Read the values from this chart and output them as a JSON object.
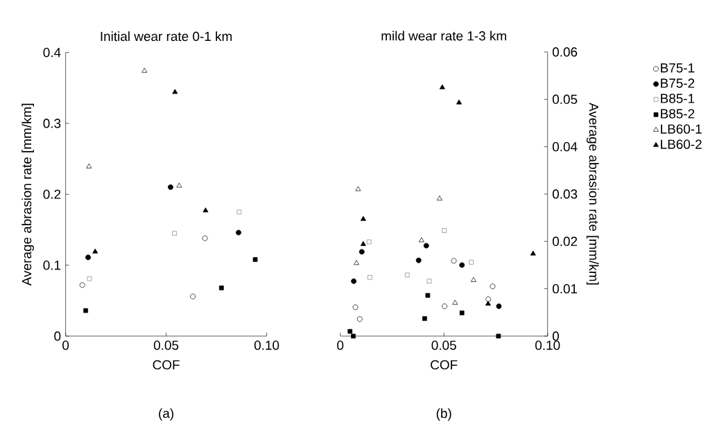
{
  "chart_data": [
    {
      "type": "scatter",
      "title": "Initial wear rate 0-1 km",
      "xlabel": "COF",
      "ylabel": "Average abrasion rate [mm/km]",
      "xlim": [
        0,
        0.1
      ],
      "ylim": [
        0,
        0.4
      ],
      "xticks": [
        0,
        0.05,
        {
          "value": 0.1,
          "label": "0.10"
        }
      ],
      "yticks": [
        0,
        0.1,
        0.2,
        0.3,
        0.4
      ],
      "annotations": [
        "(a)"
      ],
      "series": [
        {
          "color": "#000000",
          "marker": "circle-open",
          "x": [
            0.0083,
            0.0633,
            0.0693
          ],
          "values": [
            0.072,
            0.056,
            0.138
          ]
        },
        {
          "color": "#000000",
          "marker": "circle",
          "x": [
            0.0112,
            0.0522,
            0.086
          ],
          "values": [
            0.111,
            0.21,
            0.146
          ]
        },
        {
          "color": "#808080",
          "marker": "square-open",
          "x": [
            0.0119,
            0.0541,
            0.0863
          ],
          "values": [
            0.081,
            0.145,
            0.175
          ]
        },
        {
          "color": "#000000",
          "marker": "square",
          "x": [
            0.01,
            0.0775,
            0.0943
          ],
          "values": [
            0.036,
            0.068,
            0.108
          ]
        },
        {
          "color": "#000000",
          "marker": "triangle-open",
          "x": [
            0.0116,
            0.0392,
            0.0565
          ],
          "values": [
            0.239,
            0.374,
            0.212
          ]
        },
        {
          "color": "#000000",
          "marker": "triangle",
          "x": [
            0.0147,
            0.0544,
            0.0696
          ],
          "values": [
            0.119,
            0.344,
            0.177
          ]
        }
      ]
    },
    {
      "type": "scatter",
      "title": "mild wear rate 1-3 km",
      "xlabel": "COF",
      "y2label": "Average abrasion rate [mm/km]",
      "xlim": [
        0,
        0.1
      ],
      "y2lim": [
        0,
        0.06
      ],
      "xticks": [
        0,
        0.05,
        {
          "value": 0.1,
          "label": "0.10"
        }
      ],
      "y2ticks": [
        0,
        0.01,
        0.02,
        0.03,
        0.04,
        0.05,
        0.06
      ],
      "annotations": [
        "(b)"
      ],
      "legend": "right",
      "series": [
        {
          "name": "B75-1",
          "axis": "y2",
          "color": "#000000",
          "marker": "circle-open",
          "x": [
            0.0073,
            0.0094,
            0.0503,
            0.0548,
            0.0735,
            0.0714
          ],
          "values": [
            0.0061,
            0.0036,
            0.0063,
            0.0159,
            0.0105,
            0.0078
          ]
        },
        {
          "name": "B75-2",
          "axis": "y2",
          "color": "#000000",
          "marker": "circle",
          "x": [
            0.0065,
            0.0104,
            0.0378,
            0.0415,
            0.0587,
            0.0765
          ],
          "values": [
            0.0116,
            0.0178,
            0.016,
            0.0191,
            0.015,
            0.0063
          ]
        },
        {
          "name": "B85-1",
          "axis": "y2",
          "color": "#808080",
          "marker": "square-open",
          "x": [
            0.0143,
            0.0139,
            0.0323,
            0.0429,
            0.0502,
            0.0632
          ],
          "values": [
            0.0124,
            0.0199,
            0.0129,
            0.0116,
            0.0223,
            0.0156
          ]
        },
        {
          "name": "B85-2",
          "axis": "y2",
          "color": "#000000",
          "marker": "square",
          "x": [
            0.0047,
            0.0063,
            0.0407,
            0.0422,
            0.0587,
            0.0763
          ],
          "values": [
            0.001,
            0.0,
            0.0037,
            0.0086,
            0.0049,
            0.0
          ]
        },
        {
          "name": "LB60-1",
          "axis": "y2",
          "color": "#000000",
          "marker": "triangle-open",
          "x": [
            0.0086,
            0.0078,
            0.0392,
            0.0479,
            0.0554,
            0.0643
          ],
          "values": [
            0.031,
            0.0154,
            0.0202,
            0.029,
            0.007,
            0.0118
          ]
        },
        {
          "name": "LB60-2",
          "axis": "y2",
          "color": "#000000",
          "marker": "triangle",
          "x": [
            0.0492,
            0.0573,
            0.0111,
            0.0111,
            0.0713,
            0.093
          ],
          "values": [
            0.0525,
            0.0493,
            0.0247,
            0.0194,
            0.0068,
            0.0174
          ]
        }
      ]
    }
  ]
}
